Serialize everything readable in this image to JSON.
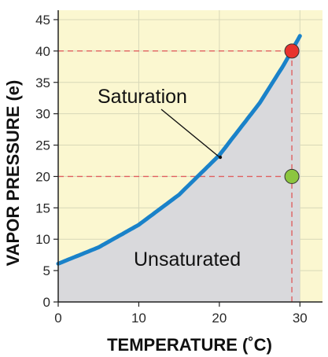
{
  "chart_data": {
    "type": "area",
    "xlabel": "TEMPERATURE (˚C)",
    "ylabel": "VAPOR PRESSURE (e)",
    "xlim": [
      0,
      32.8
    ],
    "ylim": [
      0,
      46.5
    ],
    "xticks": [
      "0",
      "10",
      "20",
      "30"
    ],
    "yticks": [
      "0",
      "5",
      "10",
      "15",
      "20",
      "25",
      "30",
      "35",
      "40",
      "45"
    ],
    "grid": true,
    "x_extent_shaded": 30,
    "series": [
      {
        "name": "Saturation",
        "x": [
          0,
          5,
          10,
          15,
          20,
          25,
          28,
          29,
          30
        ],
        "y": [
          6.1,
          8.7,
          12.3,
          17.1,
          23.4,
          31.7,
          37.8,
          40.1,
          42.4
        ]
      }
    ],
    "points": [
      {
        "x": 29,
        "y": 40,
        "color": "#e8322e"
      },
      {
        "x": 29,
        "y": 20,
        "color": "#8cc63f"
      }
    ],
    "reference_lines": [
      {
        "orientation": "horizontal",
        "value": 40,
        "color": "#e06060"
      },
      {
        "orientation": "horizontal",
        "value": 20,
        "color": "#e06060"
      },
      {
        "orientation": "vertical",
        "value": 29,
        "color": "#e06060"
      }
    ],
    "annotations": [
      "Saturation",
      "Unsaturated"
    ],
    "colors": {
      "background": "#fbf7d0",
      "unsaturated_fill": "#d9d9dc",
      "curve": "#1a82c9",
      "grid": "#d8d8b8"
    }
  }
}
